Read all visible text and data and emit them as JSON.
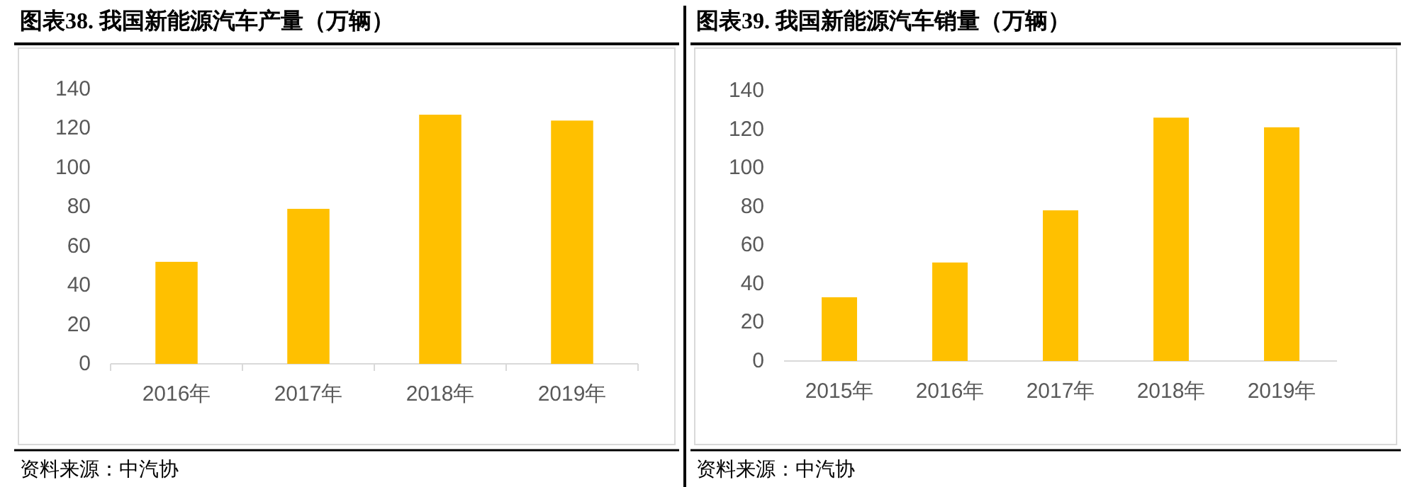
{
  "chart_data": [
    {
      "type": "bar",
      "title": "图表38.  我国新能源汽车产量（万辆）",
      "categories": [
        "2016年",
        "2017年",
        "2018年",
        "2019年"
      ],
      "values": [
        52,
        79,
        127,
        124
      ],
      "color": "#ffc000",
      "ylim": [
        0,
        140
      ],
      "yticks": [
        0,
        20,
        40,
        60,
        80,
        100,
        120,
        140
      ],
      "grid": false,
      "annotations": [
        "资料来源：中汽协"
      ]
    },
    {
      "type": "bar",
      "title": "图表39.  我国新能源汽车销量（万辆）",
      "categories": [
        "2015年",
        "2016年",
        "2017年",
        "2018年",
        "2019年"
      ],
      "values": [
        33,
        51,
        78,
        126,
        121
      ],
      "color": "#ffc000",
      "ylim": [
        0,
        140
      ],
      "yticks": [
        0,
        20,
        40,
        60,
        80,
        100,
        120,
        140
      ],
      "grid": false,
      "annotations": [
        "资料来源：中汽协"
      ]
    }
  ]
}
